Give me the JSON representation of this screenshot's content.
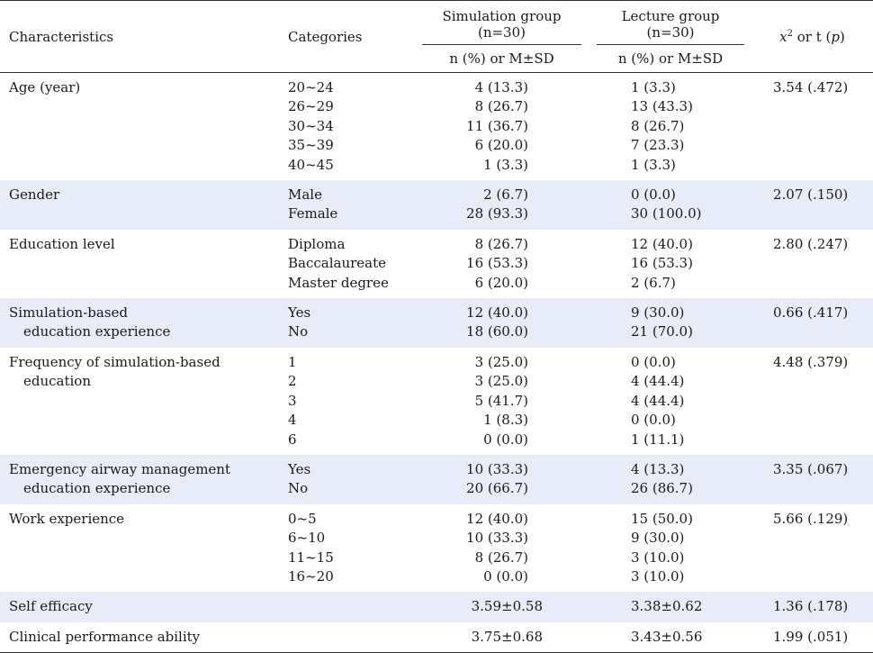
{
  "header": {
    "characteristics": "Characteristics",
    "categories": "Categories",
    "sim_group": "Simulation group",
    "sim_n": "(n=30)",
    "lec_group": "Lecture group",
    "lec_n": "(n=30)",
    "stat_x": "x",
    "stat_sup": "2",
    "stat_mid": " or t (",
    "stat_p": "p",
    "stat_end": ")",
    "sim_sub": "n (%) or M±SD",
    "lec_sub": "n (%) or M±SD"
  },
  "rows": [
    {
      "char": [
        "Age (year)"
      ],
      "cats": [
        "20~24",
        "26~29",
        "30~34",
        "35~39",
        "40~45"
      ],
      "sim": [
        "4 (13.3)",
        "8 (26.7)",
        "11 (36.7)",
        "6 (20.0)",
        "1 (3.3)"
      ],
      "lec": [
        "1 (3.3)",
        "13 (43.3)",
        "8 (26.7)",
        "7 (23.3)",
        "1 (3.3)"
      ],
      "stat": "3.54 (.472)"
    },
    {
      "char": [
        "Gender"
      ],
      "cats": [
        "Male",
        "Female"
      ],
      "sim": [
        "2 (6.7)",
        "28 (93.3)"
      ],
      "lec": [
        "0 (0.0)",
        "30 (100.0)"
      ],
      "stat": "2.07 (.150)"
    },
    {
      "char": [
        "Education level"
      ],
      "cats": [
        "Diploma",
        "Baccalaureate",
        "Master degree"
      ],
      "sim": [
        "8 (26.7)",
        "16 (53.3)",
        "6 (20.0)"
      ],
      "lec": [
        "12 (40.0)",
        "16 (53.3)",
        "2 (6.7)"
      ],
      "stat": "2.80 (.247)"
    },
    {
      "char": [
        "Simulation-based",
        "education experience"
      ],
      "cats": [
        "Yes",
        "No"
      ],
      "sim": [
        "12 (40.0)",
        "18 (60.0)"
      ],
      "lec": [
        "9 (30.0)",
        "21 (70.0)"
      ],
      "stat": "0.66 (.417)"
    },
    {
      "char": [
        "Frequency of simulation-based",
        "education"
      ],
      "cats": [
        "1",
        "2",
        "3",
        "4",
        "6"
      ],
      "sim": [
        "3 (25.0)",
        "3 (25.0)",
        "5 (41.7)",
        "1 (8.3)",
        "0 (0.0)"
      ],
      "lec": [
        "0 (0.0)",
        "4 (44.4)",
        "4 (44.4)",
        "0 (0.0)",
        "1 (11.1)"
      ],
      "stat": "4.48 (.379)"
    },
    {
      "char": [
        "Emergency airway management",
        "education experience"
      ],
      "cats": [
        "Yes",
        "No"
      ],
      "sim": [
        "10 (33.3)",
        "20 (66.7)"
      ],
      "lec": [
        "4 (13.3)",
        "26 (86.7)"
      ],
      "stat": "3.35 (.067)"
    },
    {
      "char": [
        "Work experience"
      ],
      "cats": [
        "0~5",
        "6~10",
        "11~15",
        "16~20"
      ],
      "sim": [
        "12 (40.0)",
        "10 (33.3)",
        "8 (26.7)",
        "0 (0.0)"
      ],
      "lec": [
        "15 (50.0)",
        "9 (30.0)",
        "3 (10.0)",
        "3 (10.0)"
      ],
      "stat": "5.66 (.129)"
    },
    {
      "char": [
        "Self efficacy"
      ],
      "cats": [],
      "sim": [
        "3.59±0.58"
      ],
      "lec": [
        "3.38±0.62"
      ],
      "stat": "1.36 (.178)"
    },
    {
      "char": [
        "Clinical performance ability"
      ],
      "cats": [],
      "sim": [
        "3.75±0.68"
      ],
      "lec": [
        "3.43±0.56"
      ],
      "stat": "1.99 (.051)"
    }
  ]
}
